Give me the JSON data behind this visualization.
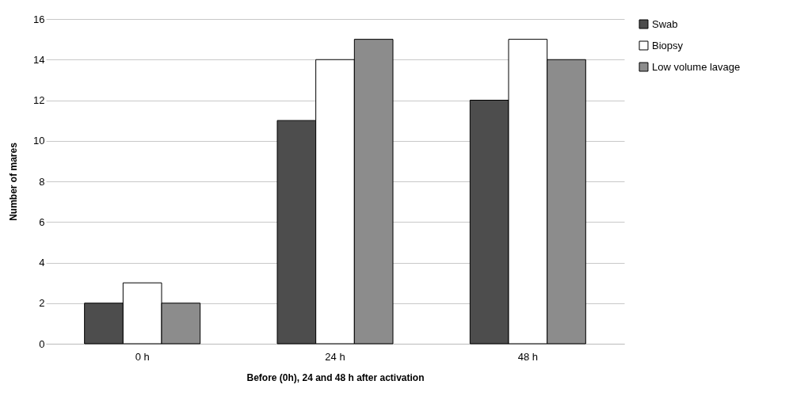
{
  "chart_data": {
    "type": "bar",
    "xlabel": "Before (0h), 24 and 48 h after activation",
    "ylabel": "Number of mares",
    "categories": [
      "0 h",
      "24 h",
      "48 h"
    ],
    "series": [
      {
        "name": "Swab",
        "color": "#4d4d4d",
        "values": [
          2,
          11,
          12
        ]
      },
      {
        "name": "Biopsy",
        "color": "#ffffff",
        "values": [
          3,
          14,
          15
        ]
      },
      {
        "name": "Low volume lavage",
        "color": "#8c8c8c",
        "values": [
          2,
          15,
          14
        ]
      }
    ],
    "ylim": [
      0,
      16
    ],
    "yticks": [
      0,
      2,
      4,
      6,
      8,
      10,
      12,
      14,
      16
    ],
    "grid": "y",
    "legend": "right"
  }
}
